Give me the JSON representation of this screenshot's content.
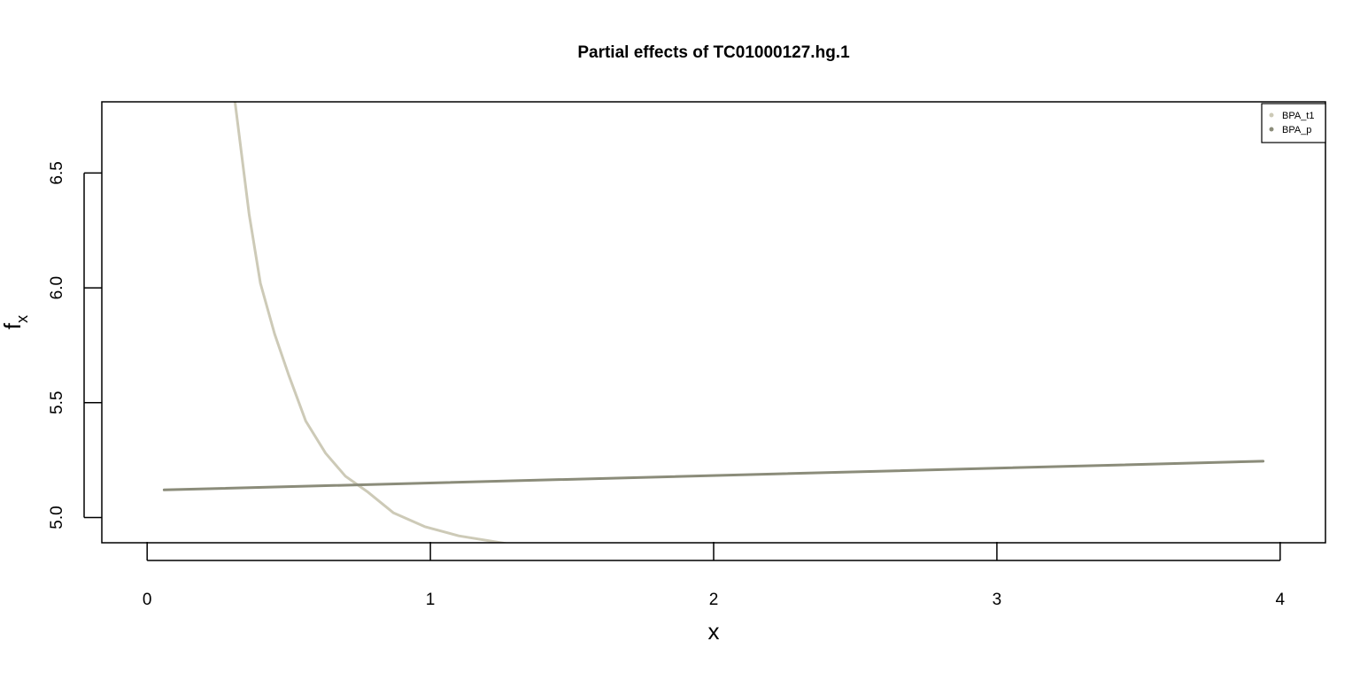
{
  "chart_data": {
    "type": "line",
    "title": "Partial effects of TC01000127.hg.1",
    "xlabel": "x",
    "ylabel_main": "f",
    "ylabel_sub": "x",
    "xlim": [
      -0.16,
      4.16
    ],
    "ylim": [
      4.89,
      6.81
    ],
    "x_ticks": [
      0,
      1,
      2,
      3,
      4
    ],
    "x_tick_labels": [
      "0",
      "1",
      "2",
      "3",
      "4"
    ],
    "y_ticks": [
      5.0,
      5.5,
      6.0,
      6.5
    ],
    "y_tick_labels": [
      "5.0",
      "5.5",
      "6.0",
      "6.5"
    ],
    "legend_position": "top-right",
    "series": [
      {
        "name": "BPA_t1",
        "color": "#cdcab7",
        "x": [
          0.31,
          0.36,
          0.4,
          0.45,
          0.5,
          0.56,
          0.63,
          0.7,
          0.78,
          0.87,
          0.98,
          1.1,
          1.3
        ],
        "y": [
          6.81,
          6.32,
          6.02,
          5.8,
          5.62,
          5.42,
          5.28,
          5.18,
          5.11,
          5.02,
          4.96,
          4.92,
          4.88
        ]
      },
      {
        "name": "BPA_p",
        "color": "#8b8c7a",
        "x": [
          0.06,
          3.94
        ],
        "y": [
          5.12,
          5.245
        ]
      }
    ]
  }
}
